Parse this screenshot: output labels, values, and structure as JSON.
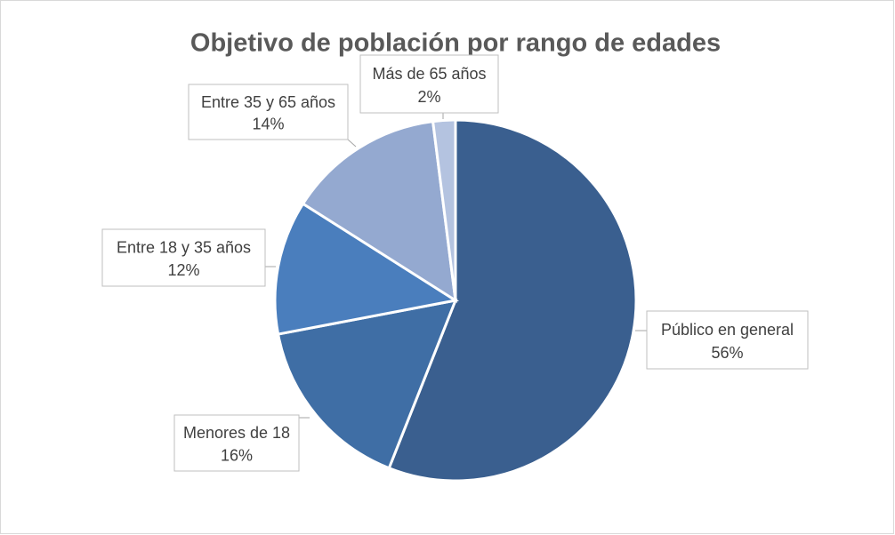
{
  "chart_data": {
    "type": "pie",
    "title": "Objetivo de población por rango de edades",
    "categories": [
      "Público en general",
      "Menores de 18",
      "Entre 18 y 35 años",
      "Entre 35 y 65 años",
      "Más de 65 años"
    ],
    "values": [
      56,
      16,
      12,
      14,
      2
    ],
    "value_labels": [
      "56%",
      "16%",
      "12%",
      "14%",
      "2%"
    ],
    "colors": [
      "#3a5f8f",
      "#3f6ea5",
      "#4a7ebd",
      "#94a9d0",
      "#b4c3e0"
    ]
  }
}
